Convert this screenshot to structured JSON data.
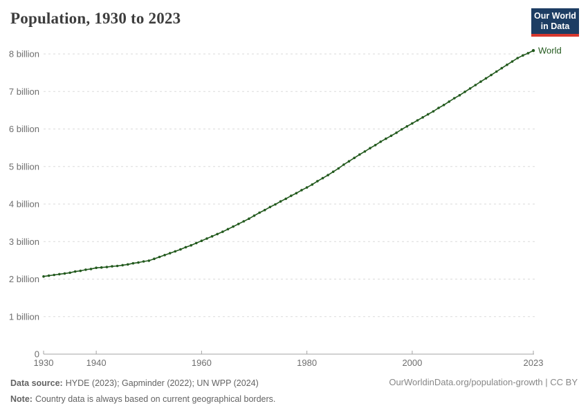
{
  "header": {
    "title": "Population, 1930 to 2023"
  },
  "logo": {
    "line1": "Our World",
    "line2": "in Data"
  },
  "colors": {
    "series_green": "#235a1e",
    "grid": "#dadada",
    "axis": "#a3a3a3",
    "tick_label": "#6e6e6e",
    "logo_navy": "#1d3d63",
    "logo_red": "#d7382e"
  },
  "chart_data": {
    "type": "line",
    "title": "Population, 1930 to 2023",
    "xlabel": "",
    "ylabel": "",
    "unit": "billions of people",
    "grid": "dashed horizontal",
    "legend_position": "end-of-line label",
    "x_range": [
      1930,
      2023
    ],
    "y_range": [
      0,
      8
    ],
    "x_ticks": [
      {
        "value": 1930,
        "label": "1930"
      },
      {
        "value": 1940,
        "label": "1940"
      },
      {
        "value": 1960,
        "label": "1960"
      },
      {
        "value": 1980,
        "label": "1980"
      },
      {
        "value": 2000,
        "label": "2000"
      },
      {
        "value": 2023,
        "label": "2023"
      }
    ],
    "y_ticks": [
      {
        "value": 0,
        "label": "0"
      },
      {
        "value": 1,
        "label": "1 billion"
      },
      {
        "value": 2,
        "label": "2 billion"
      },
      {
        "value": 3,
        "label": "3 billion"
      },
      {
        "value": 4,
        "label": "4 billion"
      },
      {
        "value": 5,
        "label": "5 billion"
      },
      {
        "value": 6,
        "label": "6 billion"
      },
      {
        "value": 7,
        "label": "7 billion"
      },
      {
        "value": 8,
        "label": "8 billion"
      }
    ],
    "series": [
      {
        "name": "World",
        "color": "#235a1e",
        "x": [
          1930,
          1931,
          1932,
          1933,
          1934,
          1935,
          1936,
          1937,
          1938,
          1939,
          1940,
          1941,
          1942,
          1943,
          1944,
          1945,
          1946,
          1947,
          1948,
          1949,
          1950,
          1951,
          1952,
          1953,
          1954,
          1955,
          1956,
          1957,
          1958,
          1959,
          1960,
          1961,
          1962,
          1963,
          1964,
          1965,
          1966,
          1967,
          1968,
          1969,
          1970,
          1971,
          1972,
          1973,
          1974,
          1975,
          1976,
          1977,
          1978,
          1979,
          1980,
          1981,
          1982,
          1983,
          1984,
          1985,
          1986,
          1987,
          1988,
          1989,
          1990,
          1991,
          1992,
          1993,
          1994,
          1995,
          1996,
          1997,
          1998,
          1999,
          2000,
          2001,
          2002,
          2003,
          2004,
          2005,
          2006,
          2007,
          2008,
          2009,
          2010,
          2011,
          2012,
          2013,
          2014,
          2015,
          2016,
          2017,
          2018,
          2019,
          2020,
          2021,
          2022,
          2023
        ],
        "values": [
          2.07,
          2.09,
          2.11,
          2.13,
          2.15,
          2.17,
          2.2,
          2.22,
          2.25,
          2.27,
          2.3,
          2.31,
          2.32,
          2.34,
          2.35,
          2.37,
          2.39,
          2.42,
          2.44,
          2.47,
          2.49,
          2.54,
          2.59,
          2.64,
          2.69,
          2.74,
          2.79,
          2.85,
          2.9,
          2.96,
          3.02,
          3.08,
          3.14,
          3.2,
          3.26,
          3.33,
          3.4,
          3.47,
          3.54,
          3.61,
          3.69,
          3.77,
          3.84,
          3.92,
          3.99,
          4.07,
          4.14,
          4.22,
          4.29,
          4.37,
          4.44,
          4.52,
          4.61,
          4.69,
          4.77,
          4.86,
          4.95,
          5.05,
          5.14,
          5.23,
          5.32,
          5.4,
          5.49,
          5.57,
          5.66,
          5.74,
          5.82,
          5.9,
          5.99,
          6.07,
          6.15,
          6.23,
          6.31,
          6.39,
          6.47,
          6.56,
          6.64,
          6.73,
          6.82,
          6.9,
          6.99,
          7.08,
          7.17,
          7.26,
          7.35,
          7.44,
          7.53,
          7.62,
          7.71,
          7.8,
          7.89,
          7.96,
          8.02,
          8.09
        ]
      }
    ]
  },
  "footer": {
    "source_label": "Data source:",
    "source_text": "HYDE (2023); Gapminder (2022); UN WPP (2024)",
    "note_label": "Note:",
    "note_text": "Country data is always based on current geographical borders.",
    "citation": "OurWorldinData.org/population-growth | CC BY"
  }
}
